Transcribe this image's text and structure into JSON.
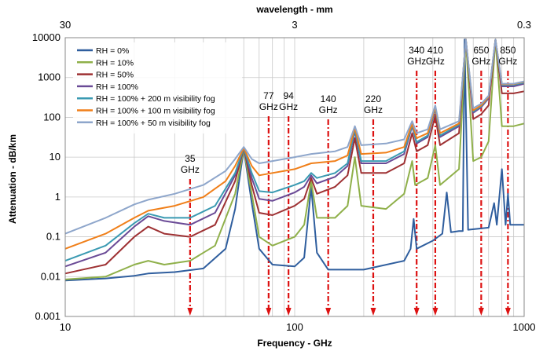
{
  "chart_data": {
    "type": "line",
    "xscale": "log",
    "yscale": "log",
    "xlim": [
      10,
      1000
    ],
    "ylim": [
      0.001,
      10000
    ],
    "xlabel": "Frequency - GHz",
    "ylabel": "Attenuation - dB/km",
    "top_axis_label": "wavelength - mm",
    "top_ticks": [
      {
        "label": "30",
        "freq": 10
      },
      {
        "label": "3",
        "freq": 100
      },
      {
        "label": "0.3",
        "freq": 1000
      }
    ],
    "x_tick_labels": [
      {
        "label": "10",
        "value": 10
      },
      {
        "label": "100",
        "value": 100
      },
      {
        "label": "1000",
        "value": 1000
      }
    ],
    "y_tick_labels": [
      {
        "label": "0.001",
        "value": 0.001
      },
      {
        "label": "0.01",
        "value": 0.01
      },
      {
        "label": "0.1",
        "value": 0.1
      },
      {
        "label": "1",
        "value": 1
      },
      {
        "label": "10",
        "value": 10
      },
      {
        "label": "100",
        "value": 100
      },
      {
        "label": "1000",
        "value": 1000
      },
      {
        "label": "10000",
        "value": 10000
      }
    ],
    "grid": true,
    "legend_position": "top-left",
    "markers": [
      {
        "label": [
          "35",
          "GHz"
        ],
        "freq": 35
      },
      {
        "label": [
          "77",
          "GHz"
        ],
        "freq": 77
      },
      {
        "label": [
          "94",
          "GHz"
        ],
        "freq": 94
      },
      {
        "label": [
          "140",
          "GHz"
        ],
        "freq": 140
      },
      {
        "label": [
          "220",
          "GHz"
        ],
        "freq": 220
      },
      {
        "label": [
          "340",
          "GHz"
        ],
        "freq": 340
      },
      {
        "label": [
          "410",
          "GHz"
        ],
        "freq": 410
      },
      {
        "label": [
          "650",
          "GHz"
        ],
        "freq": 650
      },
      {
        "label": [
          "850",
          "GHz"
        ],
        "freq": 850
      }
    ],
    "marker_color": "#dd1111",
    "series": [
      {
        "name": "RH = 0%",
        "color": "#2f5e9e",
        "points": [
          [
            10,
            0.008
          ],
          [
            15,
            0.009
          ],
          [
            20,
            0.0105
          ],
          [
            23,
            0.012
          ],
          [
            30,
            0.013
          ],
          [
            40,
            0.016
          ],
          [
            50,
            0.05
          ],
          [
            55,
            0.5
          ],
          [
            60,
            16
          ],
          [
            65,
            0.7
          ],
          [
            70,
            0.05
          ],
          [
            80,
            0.02
          ],
          [
            100,
            0.018
          ],
          [
            110,
            0.03
          ],
          [
            118,
            1.8
          ],
          [
            125,
            0.04
          ],
          [
            140,
            0.015
          ],
          [
            200,
            0.015
          ],
          [
            300,
            0.025
          ],
          [
            320,
            0.05
          ],
          [
            330,
            0.28
          ],
          [
            340,
            0.05
          ],
          [
            400,
            0.08
          ],
          [
            440,
            0.12
          ],
          [
            460,
            1.3
          ],
          [
            480,
            0.13
          ],
          [
            520,
            0.14
          ],
          [
            540,
            0.14
          ],
          [
            550,
            9000
          ],
          [
            570,
            0.15
          ],
          [
            700,
            0.17
          ],
          [
            740,
            0.7
          ],
          [
            760,
            0.2
          ],
          [
            800,
            5
          ],
          [
            830,
            0.2
          ],
          [
            850,
            1.2
          ],
          [
            870,
            0.2
          ],
          [
            1000,
            0.2
          ]
        ]
      },
      {
        "name": "RH = 10%",
        "color": "#8fb04a",
        "points": [
          [
            10,
            0.0085
          ],
          [
            15,
            0.01
          ],
          [
            20,
            0.02
          ],
          [
            23,
            0.025
          ],
          [
            27,
            0.02
          ],
          [
            35,
            0.025
          ],
          [
            45,
            0.06
          ],
          [
            55,
            1.2
          ],
          [
            60,
            16
          ],
          [
            65,
            1.2
          ],
          [
            70,
            0.1
          ],
          [
            80,
            0.06
          ],
          [
            100,
            0.1
          ],
          [
            110,
            0.2
          ],
          [
            118,
            2.5
          ],
          [
            125,
            0.3
          ],
          [
            150,
            0.3
          ],
          [
            170,
            0.6
          ],
          [
            183,
            10
          ],
          [
            195,
            0.6
          ],
          [
            250,
            0.5
          ],
          [
            300,
            1.2
          ],
          [
            325,
            8
          ],
          [
            335,
            2
          ],
          [
            380,
            3
          ],
          [
            410,
            20
          ],
          [
            430,
            2
          ],
          [
            520,
            5
          ],
          [
            557,
            9000
          ],
          [
            600,
            8
          ],
          [
            650,
            10
          ],
          [
            700,
            25
          ],
          [
            750,
            9000
          ],
          [
            800,
            60
          ],
          [
            900,
            60
          ],
          [
            1000,
            70
          ]
        ]
      },
      {
        "name": "RH = 50%",
        "color": "#9e3133",
        "points": [
          [
            10,
            0.012
          ],
          [
            15,
            0.02
          ],
          [
            20,
            0.1
          ],
          [
            23,
            0.18
          ],
          [
            27,
            0.12
          ],
          [
            35,
            0.1
          ],
          [
            45,
            0.2
          ],
          [
            55,
            2.5
          ],
          [
            60,
            17
          ],
          [
            65,
            2
          ],
          [
            70,
            0.4
          ],
          [
            80,
            0.35
          ],
          [
            100,
            0.6
          ],
          [
            110,
            0.9
          ],
          [
            118,
            3
          ],
          [
            125,
            1.2
          ],
          [
            150,
            1.8
          ],
          [
            170,
            3.5
          ],
          [
            183,
            30
          ],
          [
            195,
            4
          ],
          [
            250,
            4
          ],
          [
            300,
            7
          ],
          [
            325,
            40
          ],
          [
            340,
            14
          ],
          [
            380,
            20
          ],
          [
            410,
            110
          ],
          [
            430,
            20
          ],
          [
            520,
            40
          ],
          [
            557,
            9000
          ],
          [
            600,
            90
          ],
          [
            650,
            120
          ],
          [
            700,
            200
          ],
          [
            750,
            9000
          ],
          [
            800,
            400
          ],
          [
            900,
            400
          ],
          [
            1000,
            450
          ]
        ]
      },
      {
        "name": "RH = 100%",
        "color": "#6a4a96",
        "points": [
          [
            10,
            0.018
          ],
          [
            15,
            0.04
          ],
          [
            20,
            0.18
          ],
          [
            23,
            0.33
          ],
          [
            27,
            0.25
          ],
          [
            35,
            0.2
          ],
          [
            45,
            0.4
          ],
          [
            55,
            3.5
          ],
          [
            60,
            17
          ],
          [
            65,
            3
          ],
          [
            70,
            0.9
          ],
          [
            80,
            0.8
          ],
          [
            100,
            1.3
          ],
          [
            110,
            1.8
          ],
          [
            118,
            3.5
          ],
          [
            125,
            2.2
          ],
          [
            150,
            3.2
          ],
          [
            170,
            6
          ],
          [
            183,
            45
          ],
          [
            195,
            7
          ],
          [
            250,
            7
          ],
          [
            300,
            12
          ],
          [
            325,
            60
          ],
          [
            340,
            22
          ],
          [
            380,
            32
          ],
          [
            410,
            160
          ],
          [
            430,
            32
          ],
          [
            520,
            60
          ],
          [
            557,
            9000
          ],
          [
            600,
            130
          ],
          [
            650,
            180
          ],
          [
            700,
            300
          ],
          [
            750,
            9000
          ],
          [
            800,
            600
          ],
          [
            900,
            600
          ],
          [
            1000,
            700
          ]
        ]
      },
      {
        "name": "RH = 100% + 200 m visibility fog",
        "color": "#3a9ab2",
        "points": [
          [
            10,
            0.025
          ],
          [
            15,
            0.06
          ],
          [
            20,
            0.22
          ],
          [
            23,
            0.38
          ],
          [
            27,
            0.3
          ],
          [
            35,
            0.3
          ],
          [
            45,
            0.6
          ],
          [
            55,
            4
          ],
          [
            60,
            17
          ],
          [
            65,
            4
          ],
          [
            70,
            1.4
          ],
          [
            80,
            1.3
          ],
          [
            100,
            2
          ],
          [
            110,
            2.5
          ],
          [
            118,
            4
          ],
          [
            125,
            3
          ],
          [
            150,
            4
          ],
          [
            170,
            7
          ],
          [
            183,
            50
          ],
          [
            195,
            8
          ],
          [
            250,
            8
          ],
          [
            300,
            14
          ],
          [
            325,
            65
          ],
          [
            340,
            24
          ],
          [
            380,
            35
          ],
          [
            410,
            170
          ],
          [
            430,
            35
          ],
          [
            520,
            65
          ],
          [
            557,
            9000
          ],
          [
            600,
            140
          ],
          [
            650,
            190
          ],
          [
            700,
            320
          ],
          [
            750,
            9000
          ],
          [
            800,
            650
          ],
          [
            900,
            650
          ],
          [
            1000,
            750
          ]
        ]
      },
      {
        "name": "RH = 100% + 100 m visibility fog",
        "color": "#f07f19",
        "points": [
          [
            10,
            0.05
          ],
          [
            15,
            0.12
          ],
          [
            20,
            0.3
          ],
          [
            23,
            0.45
          ],
          [
            30,
            0.6
          ],
          [
            40,
            1
          ],
          [
            50,
            2.5
          ],
          [
            55,
            6
          ],
          [
            60,
            17
          ],
          [
            65,
            6
          ],
          [
            70,
            3.5
          ],
          [
            80,
            4
          ],
          [
            100,
            5
          ],
          [
            118,
            7
          ],
          [
            150,
            8
          ],
          [
            170,
            11
          ],
          [
            183,
            55
          ],
          [
            195,
            12
          ],
          [
            250,
            13
          ],
          [
            300,
            18
          ],
          [
            325,
            70
          ],
          [
            340,
            30
          ],
          [
            380,
            40
          ],
          [
            410,
            180
          ],
          [
            430,
            40
          ],
          [
            520,
            70
          ],
          [
            557,
            9000
          ],
          [
            600,
            150
          ],
          [
            650,
            200
          ],
          [
            700,
            330
          ],
          [
            750,
            9000
          ],
          [
            800,
            680
          ],
          [
            900,
            680
          ],
          [
            1000,
            780
          ]
        ]
      },
      {
        "name": "RH = 100% + 50 m visibility fog",
        "color": "#8ea6cb",
        "points": [
          [
            10,
            0.12
          ],
          [
            15,
            0.3
          ],
          [
            20,
            0.65
          ],
          [
            23,
            0.85
          ],
          [
            30,
            1.2
          ],
          [
            40,
            2
          ],
          [
            50,
            4.5
          ],
          [
            55,
            9
          ],
          [
            60,
            18
          ],
          [
            65,
            9
          ],
          [
            70,
            7
          ],
          [
            80,
            8
          ],
          [
            100,
            10
          ],
          [
            118,
            12
          ],
          [
            150,
            14
          ],
          [
            170,
            18
          ],
          [
            183,
            60
          ],
          [
            195,
            20
          ],
          [
            250,
            22
          ],
          [
            300,
            28
          ],
          [
            325,
            80
          ],
          [
            340,
            40
          ],
          [
            380,
            50
          ],
          [
            410,
            200
          ],
          [
            430,
            50
          ],
          [
            520,
            80
          ],
          [
            557,
            9000
          ],
          [
            600,
            170
          ],
          [
            650,
            220
          ],
          [
            700,
            350
          ],
          [
            750,
            9000
          ],
          [
            800,
            700
          ],
          [
            900,
            700
          ],
          [
            1000,
            800
          ]
        ]
      }
    ]
  }
}
